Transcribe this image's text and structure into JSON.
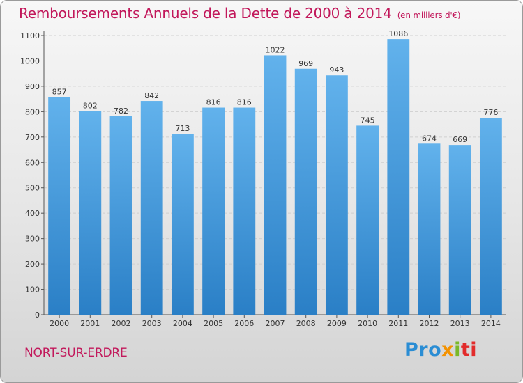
{
  "chart_data": {
    "type": "bar",
    "title": "Remboursements Annuels de la Dette de 2000 à 2014",
    "subtitle": "(en milliers d'€)",
    "categories": [
      "2000",
      "2001",
      "2002",
      "2003",
      "2004",
      "2005",
      "2006",
      "2007",
      "2008",
      "2009",
      "2010",
      "2011",
      "2012",
      "2013",
      "2014"
    ],
    "values": [
      857,
      802,
      782,
      842,
      713,
      816,
      816,
      1022,
      969,
      943,
      745,
      1086,
      674,
      669,
      776
    ],
    "ylim": [
      0,
      1100
    ],
    "yticks": [
      0,
      100,
      200,
      300,
      400,
      500,
      600,
      700,
      800,
      900,
      1000,
      1100
    ],
    "xlabel": "",
    "ylabel": "",
    "grid": true,
    "bar_color": "#4f9fde",
    "grid_color": "#cfcfcf"
  },
  "footer": {
    "city": "NORT-SUR-ERDRE",
    "logo_parts": [
      "Pro",
      "x",
      "i",
      "ti"
    ]
  },
  "colors": {
    "title": "#c2185b",
    "logo_blue": "#2a8dd4",
    "logo_orange": "#f39200",
    "logo_green": "#7ab829",
    "logo_red": "#e22b2b"
  }
}
